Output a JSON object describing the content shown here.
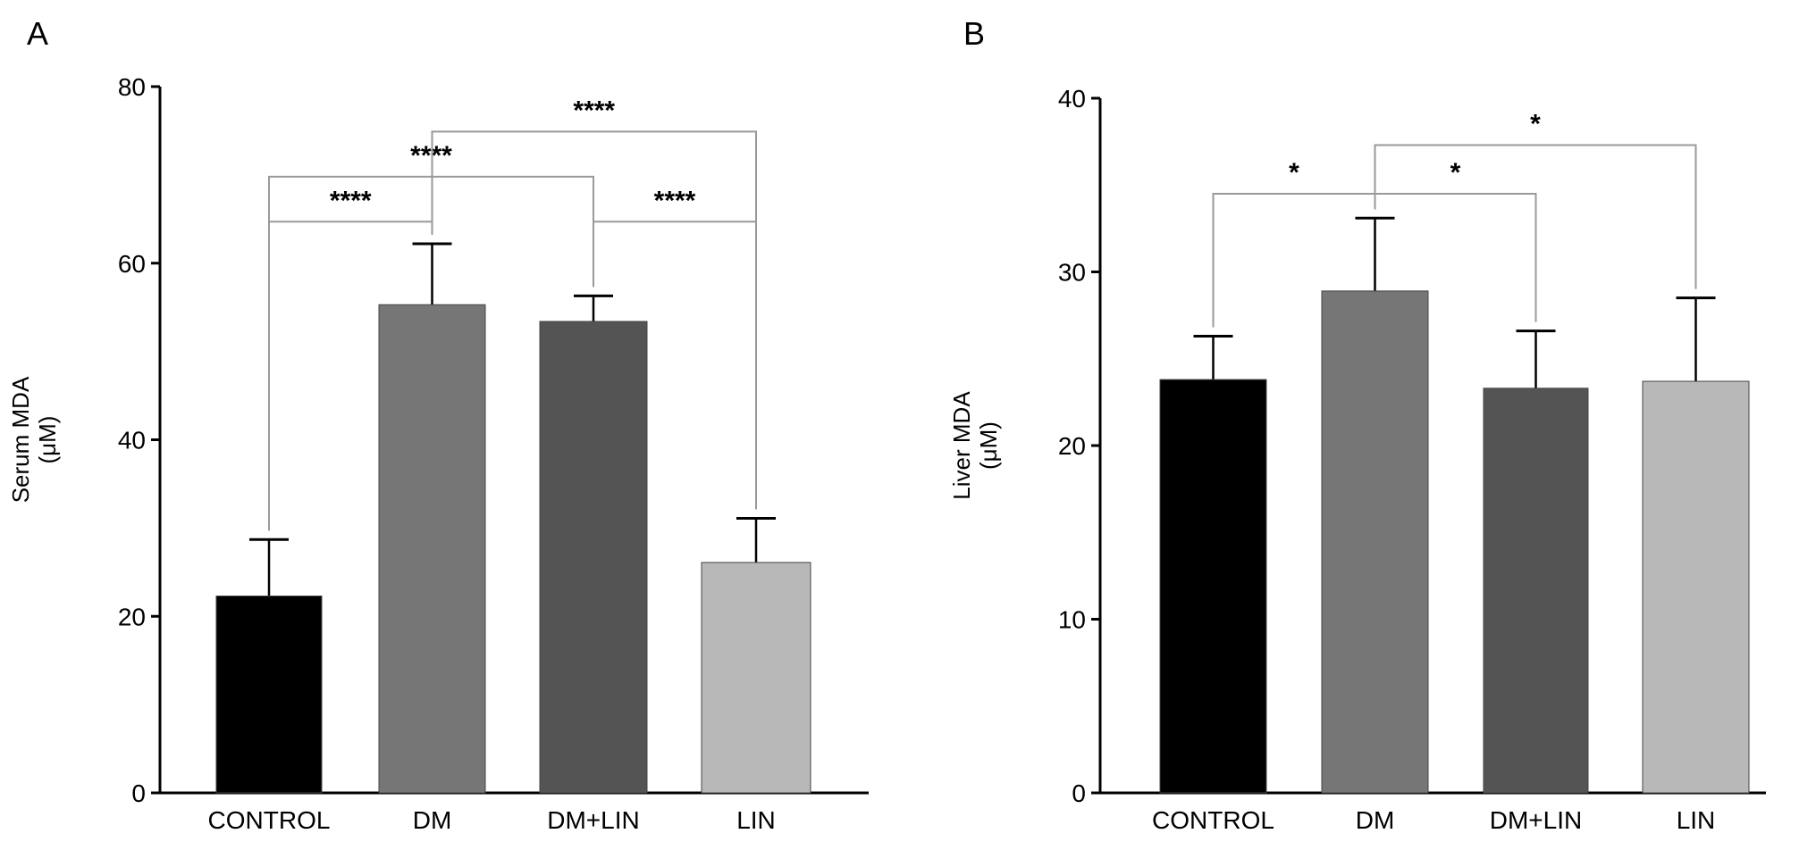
{
  "chart_data": [
    {
      "panel_label": "A",
      "type": "bar",
      "categories": [
        "CONTROL",
        "DM",
        "DM+LIN",
        "LIN"
      ],
      "values": [
        22.3,
        55.3,
        53.4,
        26.1
      ],
      "error_upper": [
        28.7,
        62.2,
        56.3,
        31.1
      ],
      "colors": [
        "#000000",
        "#767676",
        "#545454",
        "#b8b8b8"
      ],
      "ylabel": "Serum MDA\n(μM)",
      "ylabel_lines": [
        "Serum MDA",
        "(μM)"
      ],
      "ylim": [
        0,
        80
      ],
      "yticks": [
        0,
        20,
        40,
        60,
        80
      ],
      "grid": false,
      "significance": [
        {
          "from": 0,
          "to": 1,
          "level": 64.7,
          "label": "****"
        },
        {
          "from": 0,
          "to": 2,
          "level": 69.8,
          "label": "****"
        },
        {
          "from": 2,
          "to": 3,
          "level": 64.7,
          "label": "****"
        },
        {
          "from": 1,
          "to": 3,
          "level": 74.9,
          "label": "****"
        }
      ]
    },
    {
      "panel_label": "B",
      "type": "bar",
      "categories": [
        "CONTROL",
        "DM",
        "DM+LIN",
        "LIN"
      ],
      "values": [
        23.8,
        28.9,
        23.3,
        23.7
      ],
      "error_upper": [
        26.3,
        33.1,
        26.6,
        28.5
      ],
      "colors": [
        "#000000",
        "#767676",
        "#545454",
        "#b8b8b8"
      ],
      "ylabel": "Liver MDA\n(μM)",
      "ylabel_lines": [
        "Liver MDA",
        "(μM)"
      ],
      "ylim": [
        0,
        40
      ],
      "yticks": [
        0,
        10,
        20,
        30,
        40
      ],
      "grid": false,
      "significance": [
        {
          "from": 0,
          "to": 1,
          "level": 34.5,
          "label": "*"
        },
        {
          "from": 1,
          "to": 2,
          "level": 34.5,
          "label": "*"
        },
        {
          "from": 1,
          "to": 3,
          "level": 37.3,
          "label": "*"
        }
      ]
    }
  ]
}
